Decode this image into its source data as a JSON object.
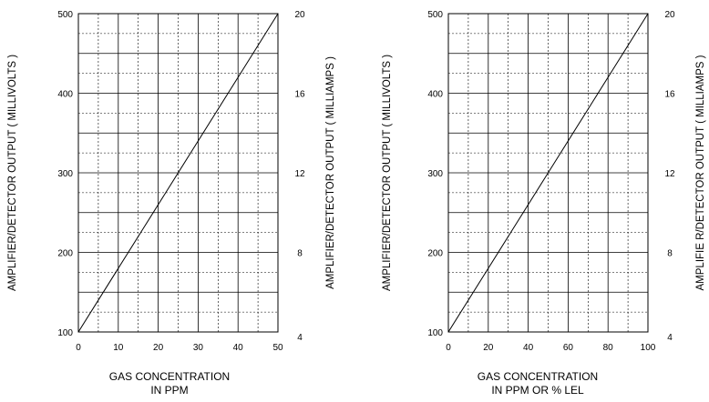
{
  "chart_data": [
    {
      "type": "line",
      "title": "",
      "xlabel": [
        "GAS CONCENTRATION",
        "IN PPM"
      ],
      "ylabel": "AMPLIFIER/DETECTOR OUTPUT ( MILLIVOLTS )",
      "y2label": "AMPLIFIER/DETECTOR OUTPUT ( MILLIAMPS )",
      "xlim": [
        0,
        50
      ],
      "ylim": [
        100,
        500
      ],
      "y2lim": [
        4,
        20
      ],
      "xticks": [
        0,
        10,
        20,
        30,
        40,
        50
      ],
      "yticks": [
        100,
        200,
        300,
        400,
        500
      ],
      "y2ticks": [
        4,
        8,
        12,
        16,
        20
      ],
      "grid": true,
      "series": [
        {
          "x": [
            0,
            50
          ],
          "y": [
            100,
            500
          ]
        }
      ]
    },
    {
      "type": "line",
      "title": "",
      "xlabel": [
        "GAS CONCENTRATION",
        "IN PPM OR % LEL"
      ],
      "ylabel": "AMPLIFIER/DETECTOR OUTPUT ( MILLIVOLTS )",
      "y2label": "AMPLIFIE R/DETECTOR OUTPUT ( MILLIAMPS )",
      "xlim": [
        0,
        100
      ],
      "ylim": [
        100,
        500
      ],
      "y2lim": [
        4,
        20
      ],
      "xticks": [
        0,
        20,
        40,
        60,
        80,
        100
      ],
      "yticks": [
        100,
        200,
        300,
        400,
        500
      ],
      "y2ticks": [
        4,
        8,
        12,
        16,
        20
      ],
      "grid": true,
      "series": [
        {
          "x": [
            0,
            100
          ],
          "y": [
            100,
            500
          ]
        }
      ]
    }
  ]
}
